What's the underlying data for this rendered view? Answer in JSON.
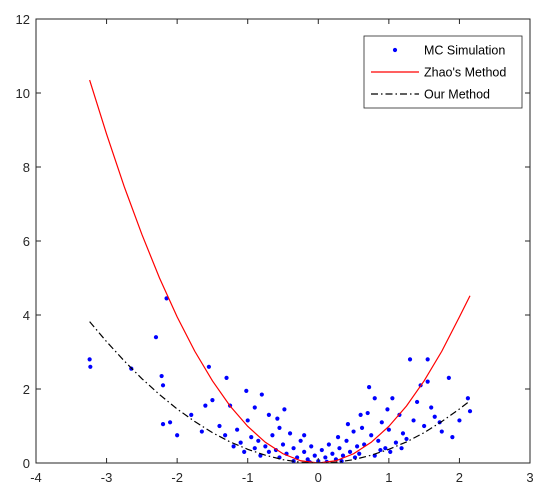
{
  "chart_data": {
    "type": "scatter",
    "xlim": [
      -4,
      3
    ],
    "ylim": [
      0,
      12
    ],
    "x_ticks": [
      "-4",
      "-3",
      "-2",
      "-1",
      "0",
      "1",
      "2",
      "3"
    ],
    "y_ticks": [
      "0",
      "2",
      "4",
      "6",
      "8",
      "10",
      "12"
    ],
    "grid": false,
    "legend_position": "top-right",
    "series": [
      {
        "name": "MC Simulation",
        "kind": "scatter",
        "color": "#0000ff",
        "points": [
          [
            -3.24,
            2.8
          ],
          [
            -3.23,
            2.6
          ],
          [
            -2.65,
            2.55
          ],
          [
            -2.3,
            3.4
          ],
          [
            -2.22,
            2.35
          ],
          [
            -2.2,
            2.1
          ],
          [
            -2.15,
            4.45
          ],
          [
            -2.2,
            1.05
          ],
          [
            -2.1,
            1.1
          ],
          [
            -2.0,
            0.75
          ],
          [
            -1.8,
            1.3
          ],
          [
            -1.65,
            0.85
          ],
          [
            -1.55,
            2.6
          ],
          [
            -1.5,
            1.7
          ],
          [
            -1.4,
            1.0
          ],
          [
            -1.3,
            2.3
          ],
          [
            -1.25,
            1.55
          ],
          [
            -1.15,
            0.9
          ],
          [
            -1.1,
            0.55
          ],
          [
            -1.0,
            1.15
          ],
          [
            -0.95,
            0.7
          ],
          [
            -0.9,
            1.5
          ],
          [
            -0.85,
            0.6
          ],
          [
            -0.8,
            1.85
          ],
          [
            -0.75,
            0.45
          ],
          [
            -0.7,
            1.3
          ],
          [
            -0.65,
            0.75
          ],
          [
            -0.6,
            0.35
          ],
          [
            -0.55,
            0.95
          ],
          [
            -0.5,
            0.5
          ],
          [
            -0.45,
            0.25
          ],
          [
            -0.4,
            0.8
          ],
          [
            -0.35,
            0.4
          ],
          [
            -0.3,
            0.15
          ],
          [
            -0.25,
            0.6
          ],
          [
            -0.2,
            0.3
          ],
          [
            -0.15,
            0.1
          ],
          [
            -0.1,
            0.45
          ],
          [
            -0.05,
            0.2
          ],
          [
            0.0,
            0.05
          ],
          [
            0.05,
            0.35
          ],
          [
            0.1,
            0.15
          ],
          [
            0.15,
            0.5
          ],
          [
            0.2,
            0.25
          ],
          [
            0.25,
            0.1
          ],
          [
            0.3,
            0.4
          ],
          [
            0.35,
            0.2
          ],
          [
            0.4,
            0.6
          ],
          [
            0.45,
            0.3
          ],
          [
            0.5,
            0.85
          ],
          [
            0.55,
            0.45
          ],
          [
            0.6,
            1.3
          ],
          [
            0.65,
            0.5
          ],
          [
            0.7,
            1.35
          ],
          [
            0.75,
            0.75
          ],
          [
            0.8,
            1.75
          ],
          [
            0.85,
            0.6
          ],
          [
            0.9,
            1.1
          ],
          [
            0.95,
            0.4
          ],
          [
            1.0,
            0.9
          ],
          [
            1.05,
            1.75
          ],
          [
            1.1,
            0.55
          ],
          [
            1.15,
            1.3
          ],
          [
            1.2,
            0.8
          ],
          [
            1.3,
            2.8
          ],
          [
            1.35,
            1.15
          ],
          [
            1.4,
            1.65
          ],
          [
            1.45,
            2.1
          ],
          [
            1.5,
            1.0
          ],
          [
            1.55,
            2.2
          ],
          [
            1.6,
            1.5
          ],
          [
            1.65,
            1.25
          ],
          [
            1.72,
            1.1
          ],
          [
            1.75,
            0.85
          ],
          [
            1.85,
            2.3
          ],
          [
            1.9,
            0.7
          ],
          [
            2.0,
            1.15
          ],
          [
            2.12,
            1.75
          ],
          [
            2.15,
            1.4
          ],
          [
            1.55,
            2.8
          ],
          [
            -1.02,
            1.95
          ],
          [
            -1.32,
            0.75
          ],
          [
            0.72,
            2.05
          ],
          [
            0.98,
            1.45
          ],
          [
            -0.58,
            1.2
          ],
          [
            0.42,
            1.05
          ],
          [
            -0.48,
            1.45
          ],
          [
            0.62,
            0.95
          ],
          [
            -1.6,
            1.55
          ],
          [
            1.25,
            0.65
          ],
          [
            -0.9,
            0.4
          ],
          [
            0.88,
            0.35
          ],
          [
            -0.2,
            0.75
          ],
          [
            0.28,
            0.7
          ],
          [
            -0.7,
            0.3
          ],
          [
            0.58,
            0.25
          ],
          [
            -0.35,
            0.05
          ],
          [
            0.33,
            0.05
          ],
          [
            -0.12,
            0.02
          ],
          [
            0.12,
            0.03
          ],
          [
            -0.55,
            0.15
          ],
          [
            0.52,
            0.15
          ],
          [
            -0.82,
            0.2
          ],
          [
            0.8,
            0.2
          ],
          [
            -1.05,
            0.3
          ],
          [
            1.02,
            0.3
          ],
          [
            -1.2,
            0.45
          ],
          [
            1.18,
            0.4
          ]
        ]
      },
      {
        "name": "Zhao's Method",
        "kind": "line",
        "color": "#ff0000",
        "dash": "solid",
        "x": [
          -3.24,
          -3.0,
          -2.75,
          -2.5,
          -2.25,
          -2.0,
          -1.75,
          -1.5,
          -1.25,
          -1.0,
          -0.75,
          -0.5,
          -0.25,
          0.0,
          0.25,
          0.5,
          0.75,
          1.0,
          1.25,
          1.5,
          1.75,
          2.0,
          2.15
        ],
        "y": [
          10.35,
          8.89,
          7.47,
          6.18,
          5.0,
          3.95,
          3.02,
          2.22,
          1.54,
          0.99,
          0.56,
          0.25,
          0.06,
          0.0,
          0.06,
          0.25,
          0.56,
          0.99,
          1.54,
          2.22,
          3.02,
          3.95,
          4.52
        ]
      },
      {
        "name": "Our Method",
        "kind": "line",
        "color": "#000000",
        "dash": "dashdot",
        "x": [
          -3.24,
          -3.0,
          -2.75,
          -2.5,
          -2.25,
          -2.0,
          -1.75,
          -1.5,
          -1.25,
          -1.0,
          -0.75,
          -0.5,
          -0.25,
          0.0,
          0.25,
          0.5,
          0.75,
          1.0,
          1.25,
          1.5,
          1.75,
          2.0,
          2.15
        ],
        "y": [
          3.82,
          3.28,
          2.76,
          2.28,
          1.85,
          1.46,
          1.12,
          0.82,
          0.57,
          0.37,
          0.21,
          0.09,
          0.02,
          0.0,
          0.02,
          0.09,
          0.21,
          0.37,
          0.57,
          0.82,
          1.12,
          1.46,
          1.68
        ]
      }
    ]
  }
}
